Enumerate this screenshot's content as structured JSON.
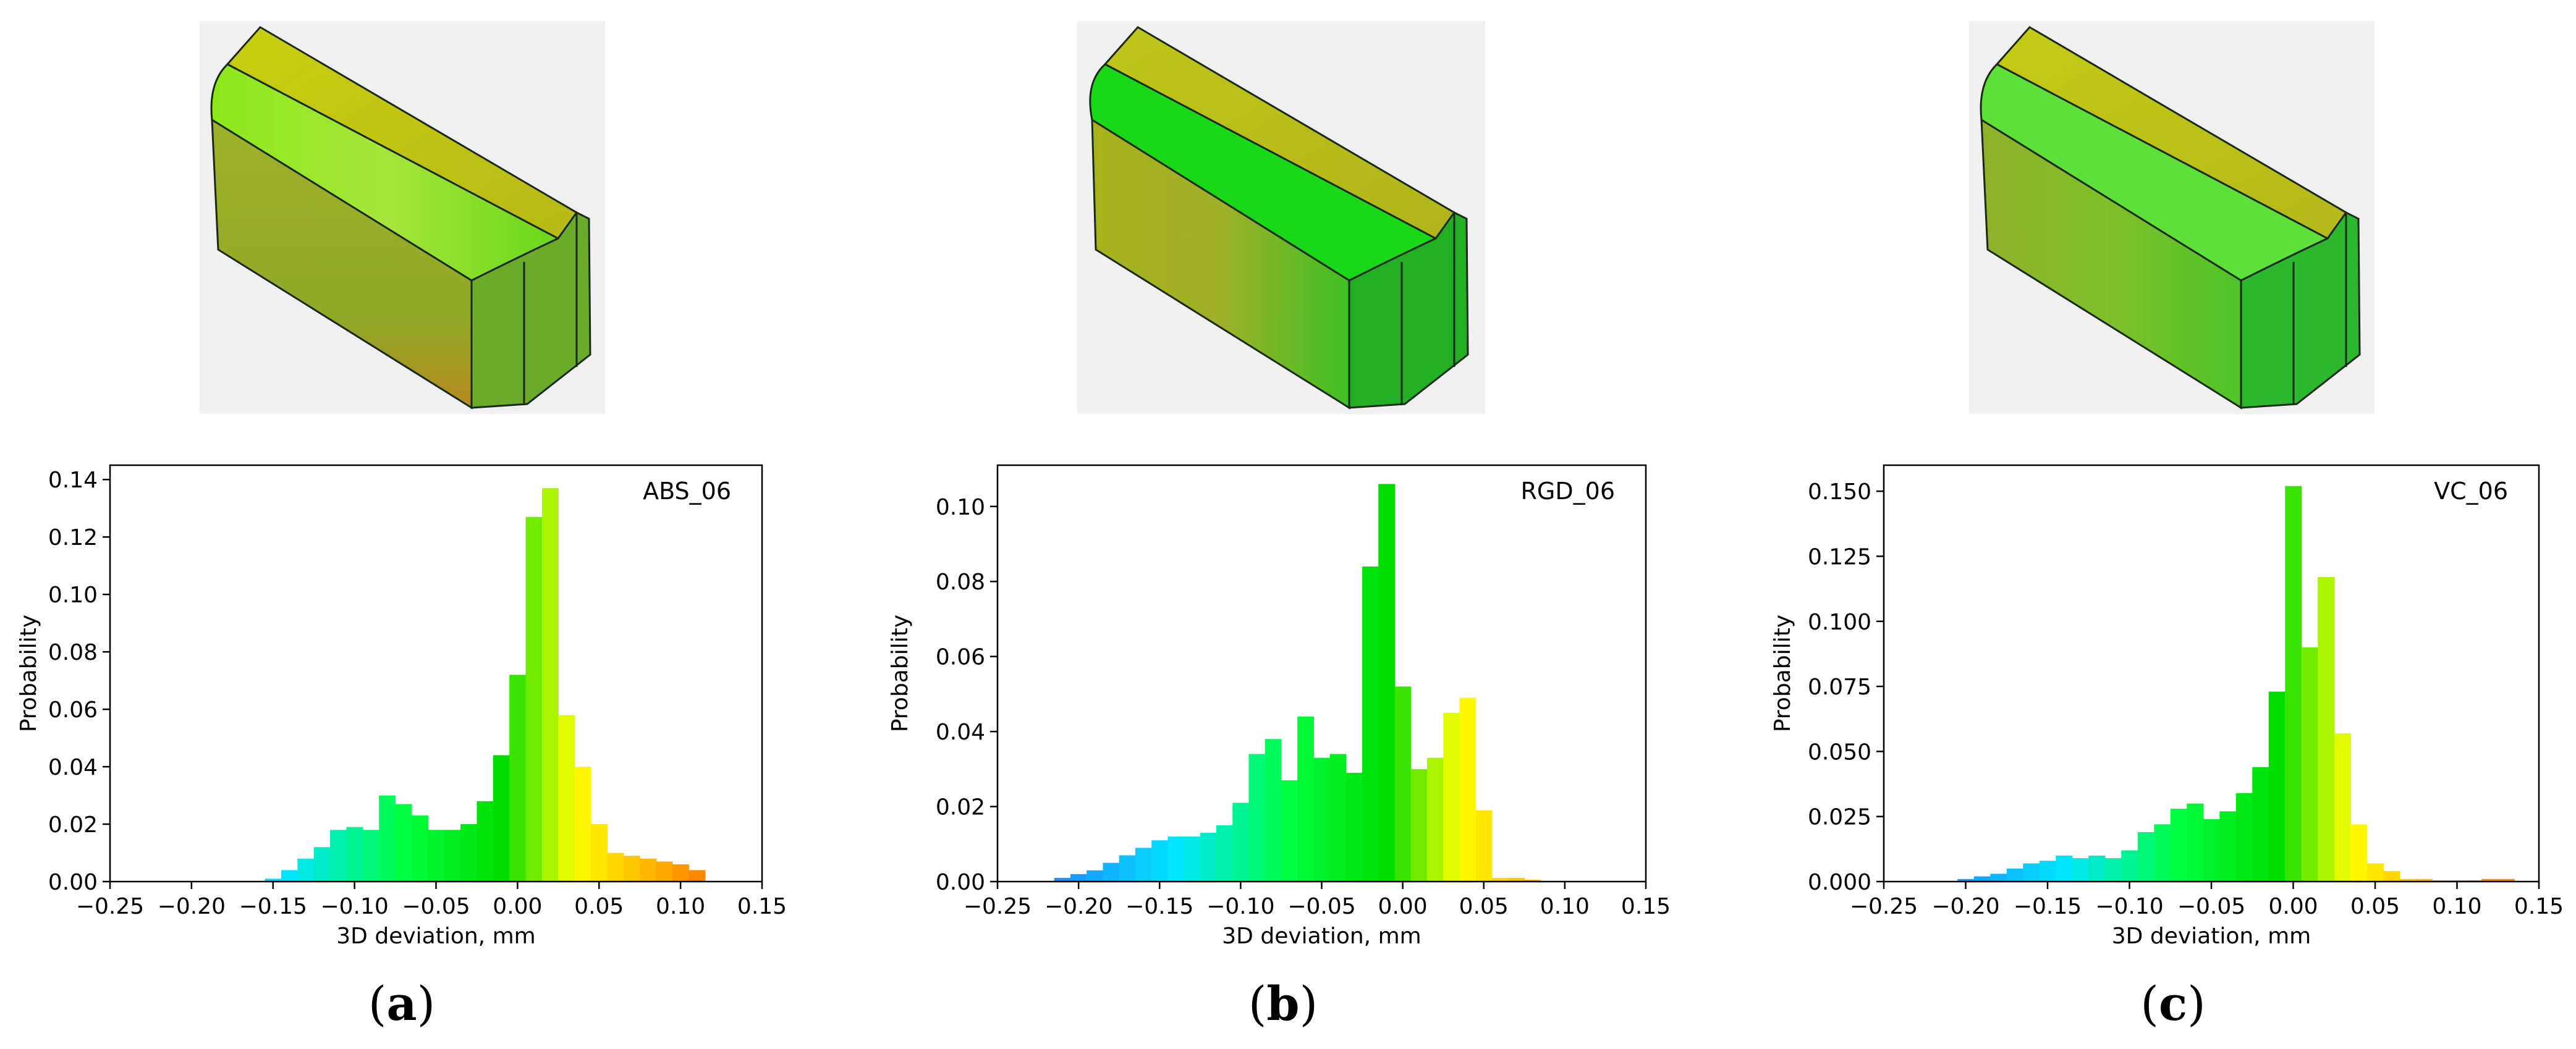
{
  "colors": {
    "background": "#ffffff",
    "render_background": "#f0f0f0",
    "deviation_colormap": [
      "#1e90ff",
      "#00e5ff",
      "#00ff40",
      "#00dd00",
      "#ffff00",
      "#ff8800"
    ],
    "model_edge": "#1a2a1a"
  },
  "chart_data": [
    {
      "type": "bar",
      "panel_label": "a",
      "sample_label": "ABS_06",
      "xlabel": "3D deviation, mm",
      "ylabel": "Probability",
      "xlim": [
        -0.25,
        0.15
      ],
      "ylim": [
        0,
        0.145
      ],
      "bin_width": 0.01,
      "x": [
        -0.15,
        -0.14,
        -0.13,
        -0.12,
        -0.11,
        -0.1,
        -0.09,
        -0.08,
        -0.07,
        -0.06,
        -0.05,
        -0.04,
        -0.03,
        -0.02,
        -0.01,
        0.0,
        0.01,
        0.02,
        0.03,
        0.04,
        0.05,
        0.06,
        0.07,
        0.08,
        0.09,
        0.1,
        0.11
      ],
      "values": [
        0.001,
        0.004,
        0.008,
        0.012,
        0.018,
        0.019,
        0.018,
        0.03,
        0.027,
        0.023,
        0.018,
        0.018,
        0.02,
        0.028,
        0.044,
        0.072,
        0.127,
        0.137,
        0.058,
        0.04,
        0.02,
        0.01,
        0.009,
        0.008,
        0.007,
        0.006,
        0.004
      ],
      "xticks": [
        "−0.25",
        "−0.20",
        "−0.15",
        "−0.10",
        "−0.05",
        "0.00",
        "0.05",
        "0.10",
        "0.15"
      ],
      "xtick_values": [
        -0.25,
        -0.2,
        -0.15,
        -0.1,
        -0.05,
        0.0,
        0.05,
        0.1,
        0.15
      ],
      "yticks": [
        "0.00",
        "0.02",
        "0.04",
        "0.06",
        "0.08",
        "0.10",
        "0.12",
        "0.14"
      ],
      "ytick_values": [
        0,
        0.02,
        0.04,
        0.06,
        0.08,
        0.1,
        0.12,
        0.14
      ]
    },
    {
      "type": "bar",
      "panel_label": "b",
      "sample_label": "RGD_06",
      "xlabel": "3D deviation, mm",
      "ylabel": "Probability",
      "xlim": [
        -0.25,
        0.15
      ],
      "ylim": [
        0,
        0.111
      ],
      "bin_width": 0.01,
      "x": [
        -0.21,
        -0.2,
        -0.19,
        -0.18,
        -0.17,
        -0.16,
        -0.15,
        -0.14,
        -0.13,
        -0.12,
        -0.11,
        -0.1,
        -0.09,
        -0.08,
        -0.07,
        -0.06,
        -0.05,
        -0.04,
        -0.03,
        -0.02,
        -0.01,
        0.0,
        0.01,
        0.02,
        0.03,
        0.04,
        0.05,
        0.06,
        0.07,
        0.08
      ],
      "values": [
        0.001,
        0.002,
        0.003,
        0.005,
        0.007,
        0.009,
        0.011,
        0.012,
        0.012,
        0.013,
        0.015,
        0.021,
        0.034,
        0.038,
        0.027,
        0.044,
        0.033,
        0.034,
        0.029,
        0.084,
        0.106,
        0.052,
        0.03,
        0.033,
        0.045,
        0.049,
        0.019,
        0.001,
        0.001,
        0.0005
      ],
      "xticks": [
        "−0.25",
        "−0.20",
        "−0.15",
        "−0.10",
        "−0.05",
        "0.00",
        "0.05",
        "0.10",
        "0.15"
      ],
      "xtick_values": [
        -0.25,
        -0.2,
        -0.15,
        -0.1,
        -0.05,
        0.0,
        0.05,
        0.1,
        0.15
      ],
      "yticks": [
        "0.00",
        "0.02",
        "0.04",
        "0.06",
        "0.08",
        "0.10"
      ],
      "ytick_values": [
        0,
        0.02,
        0.04,
        0.06,
        0.08,
        0.1
      ]
    },
    {
      "type": "bar",
      "panel_label": "c",
      "sample_label": "VC_06",
      "xlabel": "3D deviation, mm",
      "ylabel": "Probability",
      "xlim": [
        -0.25,
        0.15
      ],
      "ylim": [
        0,
        0.16
      ],
      "bin_width": 0.01,
      "x": [
        -0.2,
        -0.19,
        -0.18,
        -0.17,
        -0.16,
        -0.15,
        -0.14,
        -0.13,
        -0.12,
        -0.11,
        -0.1,
        -0.09,
        -0.08,
        -0.07,
        -0.06,
        -0.05,
        -0.04,
        -0.03,
        -0.02,
        -0.01,
        0.0,
        0.01,
        0.02,
        0.03,
        0.04,
        0.05,
        0.06,
        0.07,
        0.08,
        0.09,
        0.1,
        0.11,
        0.12,
        0.13
      ],
      "values": [
        0.001,
        0.002,
        0.003,
        0.005,
        0.007,
        0.008,
        0.01,
        0.009,
        0.01,
        0.009,
        0.012,
        0.019,
        0.022,
        0.028,
        0.03,
        0.024,
        0.027,
        0.034,
        0.044,
        0.073,
        0.152,
        0.09,
        0.117,
        0.057,
        0.022,
        0.007,
        0.004,
        0.001,
        0.001,
        0.0005,
        0.0005,
        0.0005,
        0.001,
        0.001
      ],
      "xticks": [
        "−0.25",
        "−0.20",
        "−0.15",
        "−0.10",
        "−0.05",
        "0.00",
        "0.05",
        "0.10",
        "0.15"
      ],
      "xtick_values": [
        -0.25,
        -0.2,
        -0.15,
        -0.1,
        -0.05,
        0.0,
        0.05,
        0.1,
        0.15
      ],
      "yticks": [
        "0.000",
        "0.025",
        "0.050",
        "0.075",
        "0.100",
        "0.125",
        "0.150"
      ],
      "ytick_values": [
        0,
        0.025,
        0.05,
        0.075,
        0.1,
        0.125,
        0.15
      ]
    }
  ],
  "renders": [
    {
      "name": "ABS_06 deviation colour map",
      "dominant": "#b8c020"
    },
    {
      "name": "RGD_06 deviation colour map",
      "dominant": "#20d820"
    },
    {
      "name": "VC_06 deviation colour map",
      "dominant": "#40d030"
    }
  ]
}
